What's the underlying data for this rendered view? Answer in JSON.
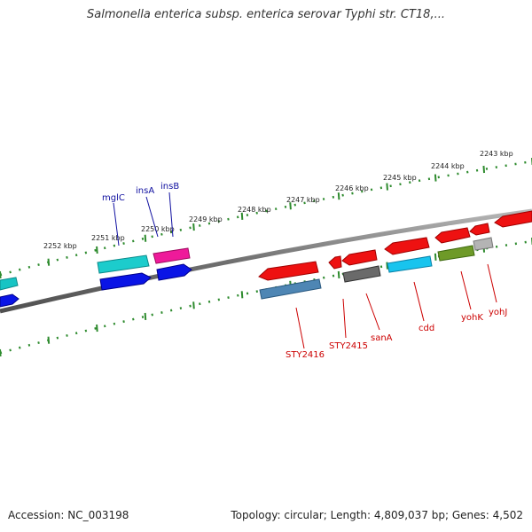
{
  "title": "Salmonella enterica subsp. enterica serovar Typhi str. CT18,...",
  "footer": {
    "accession": "Accession: NC_003198",
    "summary": "Topology: circular; Length: 4,809,037 bp; Genes: 4,502"
  },
  "colors": {
    "background": "#ffffff",
    "backbone": "#808080",
    "tick_green": "#2e8b2e",
    "forward_label": "#1010a0",
    "reverse_label": "#cc0000"
  },
  "scale_labels": [
    "2252 kbp",
    "2251 kbp",
    "2250 kbp",
    "2249 kbp",
    "2248 kbp",
    "2247 kbp",
    "2246 kbp",
    "2245 kbp",
    "2244 kbp",
    "2243 kbp"
  ],
  "forward_genes": [
    "mglC",
    "insA",
    "insB"
  ],
  "reverse_genes": [
    "STY2416",
    "STY2415",
    "sanA",
    "cdd",
    "yohK",
    "yohJ"
  ]
}
